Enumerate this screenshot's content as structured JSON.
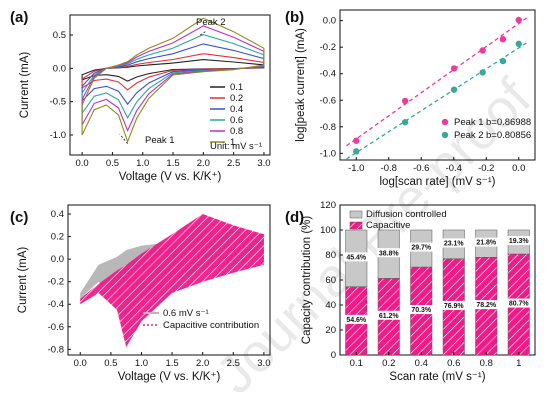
{
  "watermark": "Journal Pre-proof",
  "chart_data": [
    {
      "panel": "(a)",
      "type": "line",
      "xlabel": "Voltage (V vs. K/K⁺)",
      "ylabel": "Current (mA)",
      "xlim": [
        -0.2,
        3.1
      ],
      "ylim": [
        -1.3,
        0.8
      ],
      "xticks": [
        "0.0",
        "0.5",
        "1.0",
        "1.5",
        "2.0",
        "2.5",
        "3.0"
      ],
      "yticks": [
        "-1.0",
        "-0.5",
        "0.0",
        "0.5"
      ],
      "legend_title": "Unit: mV s⁻¹",
      "legend_position": "lower-right",
      "annotations": [
        "Peak 1",
        "Peak 2"
      ],
      "series": [
        {
          "name": "0.1",
          "color": "#222222",
          "scale": 0.16
        },
        {
          "name": "0.2",
          "color": "#e0303a",
          "scale": 0.27
        },
        {
          "name": "0.4",
          "color": "#3a4fd6",
          "scale": 0.45
        },
        {
          "name": "0.6",
          "color": "#2aa6a6",
          "scale": 0.62
        },
        {
          "name": "0.8",
          "color": "#c030c0",
          "scale": 0.78
        },
        {
          "name": "1",
          "color": "#8c8c1e",
          "scale": 0.92
        }
      ],
      "shape": {
        "v": [
          0.0,
          0.2,
          0.4,
          0.6,
          0.75,
          0.9,
          1.1,
          1.5,
          2.0,
          2.5,
          3.0
        ],
        "i_cathodic": [
          -1.0,
          -0.62,
          -0.55,
          -0.7,
          -1.1,
          -0.75,
          -0.45,
          -0.1,
          -0.05,
          -0.02,
          0.05
        ],
        "i_anodic": [
          -0.55,
          -0.15,
          0.0,
          0.05,
          0.1,
          0.2,
          0.3,
          0.45,
          0.75,
          0.55,
          0.3
        ]
      }
    },
    {
      "panel": "(b)",
      "type": "scatter",
      "xlabel": "log[scan rate] (mV s⁻¹)",
      "ylabel": "log[peak current] (mA)",
      "xlim": [
        -1.1,
        0.1
      ],
      "ylim": [
        -1.05,
        0.08
      ],
      "xticks": [
        "-1.0",
        "-0.8",
        "-0.6",
        "-0.4",
        "-0.2",
        "0.0"
      ],
      "yticks": [
        "-1.0",
        "-0.8",
        "-0.6",
        "-0.4",
        "-0.2",
        "0.0"
      ],
      "x": [
        -1.0,
        -0.699,
        -0.398,
        -0.222,
        -0.097,
        0.0
      ],
      "series": [
        {
          "name": "Peak 1",
          "note": "b=0.86988",
          "color": "#ee3a9c",
          "values": [
            -0.905,
            -0.605,
            -0.36,
            -0.225,
            -0.14,
            0.005
          ]
        },
        {
          "name": "Peak 2",
          "note": "b=0.80856",
          "color": "#38a89a",
          "values": [
            -0.985,
            -0.765,
            -0.52,
            -0.39,
            -0.305,
            -0.175
          ]
        }
      ],
      "legend_position": "lower-right"
    },
    {
      "panel": "(c)",
      "type": "area",
      "xlabel": "Voltage (V vs. K/K⁺)",
      "ylabel": "Current (mA)",
      "xlim": [
        -0.2,
        3.1
      ],
      "ylim": [
        -0.85,
        0.48
      ],
      "xticks": [
        "0.0",
        "0.5",
        "1.0",
        "1.5",
        "2.0",
        "2.5",
        "3.0"
      ],
      "yticks": [
        "-0.8",
        "-0.6",
        "-0.4",
        "-0.2",
        "0.0",
        "0.2",
        "0.4"
      ],
      "legend": [
        {
          "name": "0.6 mV s⁻¹",
          "color": "#b8b8b8"
        },
        {
          "name": "Capacitive contribution",
          "color": "#ee1b89"
        }
      ],
      "legend_position": "lower-right"
    },
    {
      "panel": "(d)",
      "type": "bar",
      "xlabel": "Scan rate (mV s⁻¹)",
      "ylabel": "Capacity contribution (%)",
      "ylim": [
        0,
        120
      ],
      "yticks": [
        "0",
        "20",
        "40",
        "60",
        "80",
        "100",
        "120"
      ],
      "categories": [
        "0.1",
        "0.2",
        "0.4",
        "0.6",
        "0.8",
        "1"
      ],
      "series": [
        {
          "name": "Capacitive",
          "color": "#ee1b89",
          "values": [
            54.6,
            61.2,
            70.3,
            76.9,
            78.2,
            80.7
          ]
        },
        {
          "name": "Diffusion controlled",
          "color": "#c8c8c8",
          "values": [
            45.4,
            38.8,
            29.7,
            23.1,
            21.8,
            19.3
          ]
        }
      ],
      "labels_capacitive": [
        "54.6%",
        "61.2%",
        "70.3%",
        "76.9%",
        "78.2%",
        "80.7%"
      ],
      "labels_diffusion": [
        "45.4%",
        "38.8%",
        "29.7%",
        "23.1%",
        "21.8%",
        "19.3%"
      ],
      "legend_position": "top-left"
    }
  ]
}
